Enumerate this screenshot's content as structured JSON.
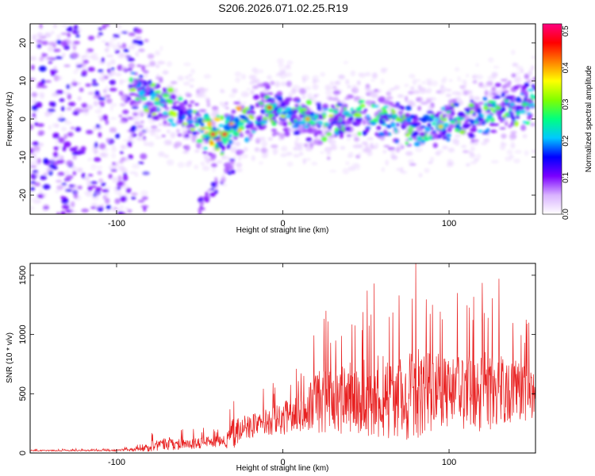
{
  "page": {
    "title": "S206.2026.071.02.25.R19"
  },
  "colorbar": {
    "label": "Normalized spectral amplitude",
    "range": [
      0.0,
      0.52
    ],
    "ticks": [
      0.0,
      0.1,
      0.2,
      0.3,
      0.4,
      0.5
    ],
    "tick_labels": [
      "0.0",
      "0.1",
      "0.2",
      "0.3",
      "0.4",
      "0.5"
    ]
  },
  "chart_data": [
    {
      "type": "heatmap",
      "title": "",
      "xlabel": "Height of straight line (km)",
      "ylabel": "Frequency (Hz)",
      "xlim": [
        -152,
        152
      ],
      "ylim": [
        -25,
        25
      ],
      "x_ticks": [
        -100,
        0,
        100
      ],
      "x_tick_labels": [
        "-100",
        "0",
        "100"
      ],
      "y_ticks": [
        20,
        10,
        0,
        -10,
        -20
      ],
      "y_tick_labels": [
        "20",
        "10",
        "0",
        "-10",
        "-20"
      ],
      "colormap": [
        "#ffffff",
        "#d9b3ff",
        "#7a00ff",
        "#0000ff",
        "#00c8ff",
        "#00ff80",
        "#80ff00",
        "#ffff00",
        "#ff8000",
        "#ff0000",
        "#ff0080"
      ],
      "trend": {
        "x": [
          -95,
          -85,
          -75,
          -65,
          -55,
          -45,
          -38,
          -30,
          -20,
          -10,
          0,
          10,
          20,
          30,
          50,
          70,
          90,
          110,
          130,
          150
        ],
        "frequency": [
          10,
          7,
          4,
          2,
          0,
          -3,
          -5,
          -3,
          0,
          2,
          2,
          1,
          -1,
          0,
          0,
          -1,
          -2,
          0,
          2,
          4
        ]
      },
      "peaks": [
        {
          "x": -42,
          "frequency": -4,
          "amplitude": 0.5
        },
        {
          "x": -35,
          "frequency": -4,
          "amplitude": 0.5
        },
        {
          "x": -8,
          "frequency": 3,
          "amplitude": 0.45
        },
        {
          "x": 15,
          "frequency": 0,
          "amplitude": 0.4
        },
        {
          "x": 95,
          "frequency": -2,
          "amplitude": 0.38
        }
      ],
      "noise_region": {
        "x": [
          -152,
          -90
        ],
        "frequency": [
          -25,
          25
        ],
        "amplitude": [
          0.02,
          0.15
        ]
      }
    },
    {
      "type": "line",
      "title": "",
      "xlabel": "Height of straight line (km)",
      "ylabel": "SNR (10 * v/v)",
      "xlim": [
        -152,
        152
      ],
      "ylim": [
        0,
        1600
      ],
      "x_ticks": [
        -100,
        0,
        100
      ],
      "x_tick_labels": [
        "-100",
        "0",
        "100"
      ],
      "y_ticks": [
        0,
        500,
        1000,
        1500
      ],
      "y_tick_labels": [
        "0",
        "500",
        "1000",
        "1500"
      ],
      "color": "#e82020",
      "envelope": {
        "x": [
          -152,
          -100,
          -85,
          -80,
          -70,
          -50,
          -35,
          -30,
          -25,
          -10,
          0,
          10,
          20,
          30,
          50,
          80,
          100,
          120,
          152
        ],
        "mean": [
          20,
          22,
          30,
          50,
          70,
          80,
          90,
          150,
          200,
          250,
          280,
          320,
          400,
          420,
          450,
          470,
          480,
          480,
          490
        ],
        "max": [
          35,
          40,
          80,
          180,
          230,
          220,
          240,
          520,
          480,
          550,
          700,
          750,
          1150,
          1200,
          1400,
          1600,
          1300,
          1450,
          1100
        ]
      },
      "spikes": [
        {
          "x": 26,
          "y": 1200
        },
        {
          "x": 55,
          "y": 1430
        },
        {
          "x": 70,
          "y": 1330
        },
        {
          "x": 80,
          "y": 1600
        },
        {
          "x": 90,
          "y": 1250
        },
        {
          "x": 105,
          "y": 1350
        },
        {
          "x": 130,
          "y": 1470
        },
        {
          "x": 148,
          "y": 1100
        }
      ]
    }
  ]
}
